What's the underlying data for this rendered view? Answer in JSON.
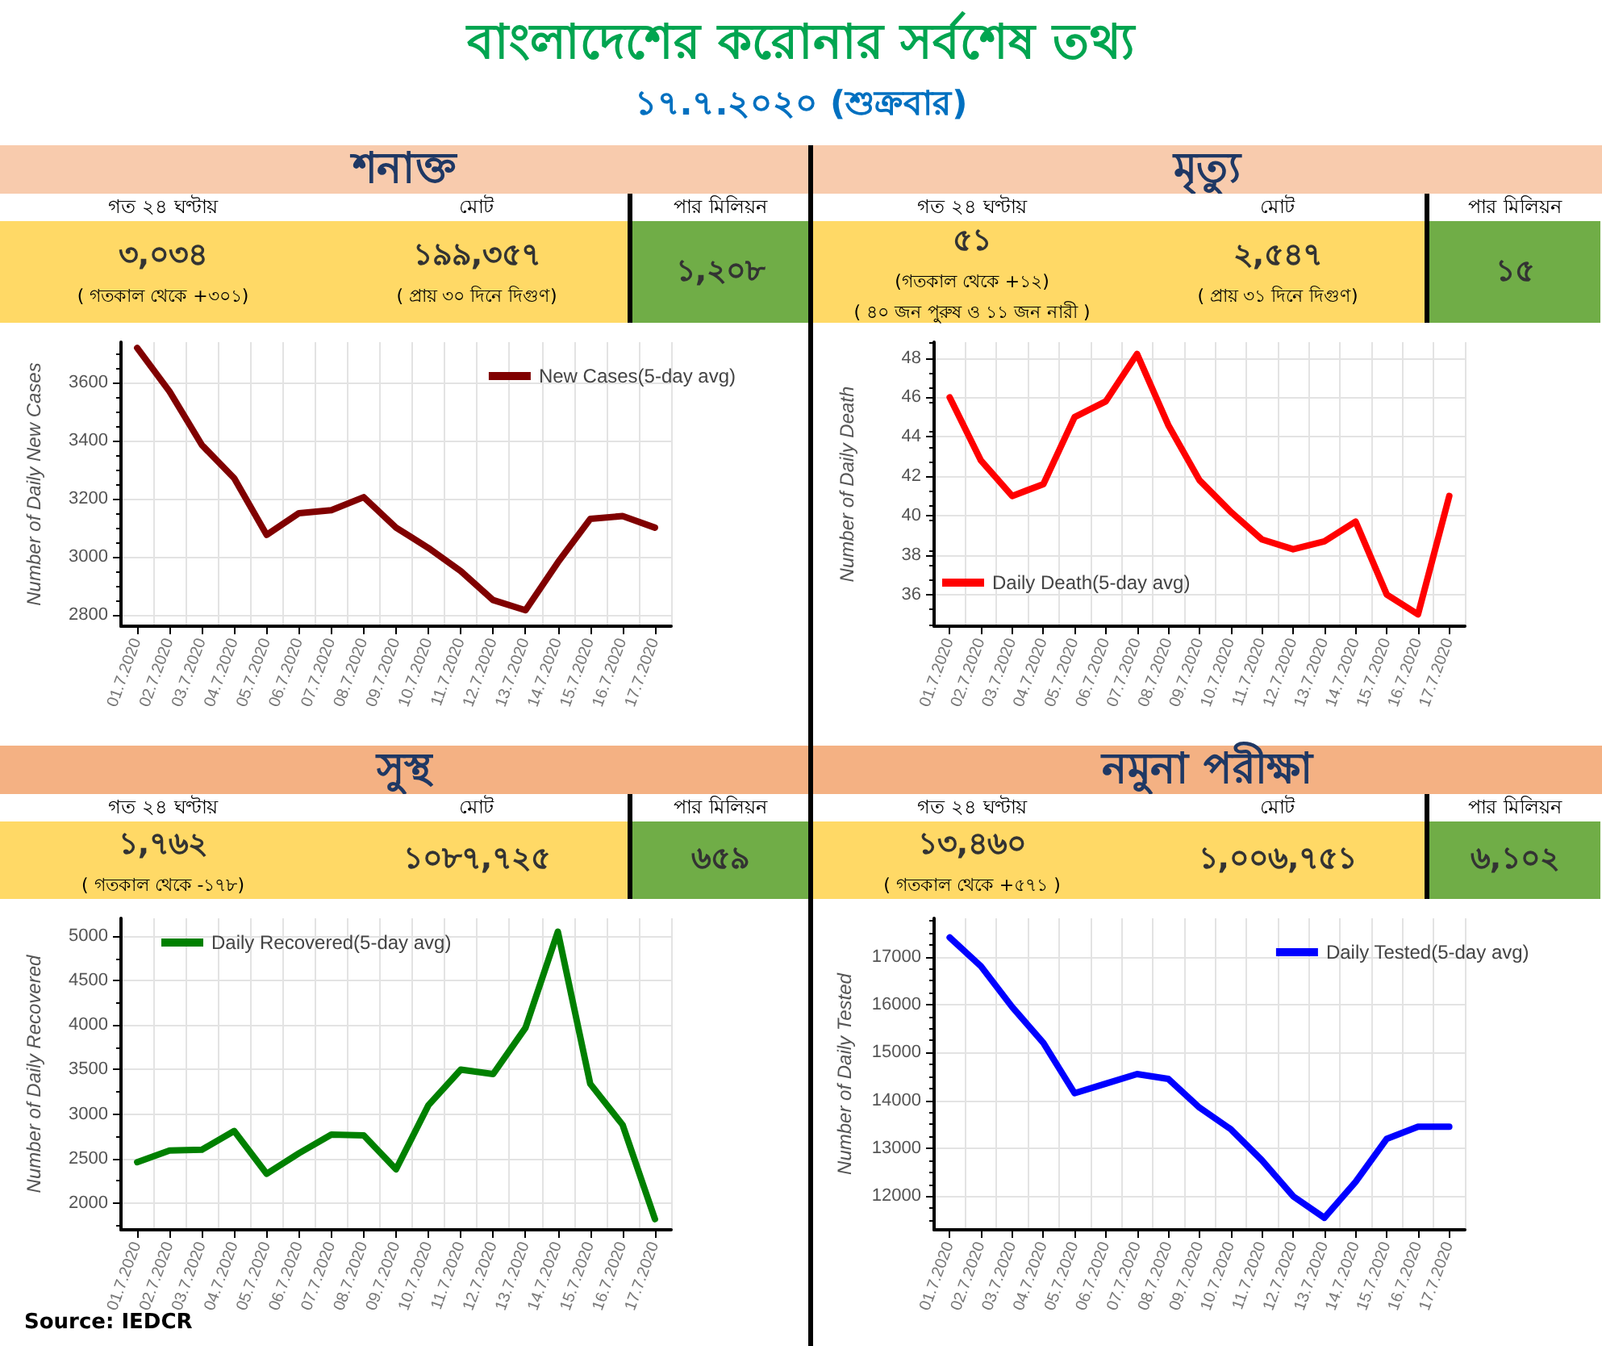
{
  "chart_data": [
    {
      "type": "other",
      "title": "বাংলাদেশের করোনার সর্বশেষ তথ্য",
      "subtitle": "১৭.৭.২০২০ (শুক্রবার)"
    },
    {
      "type": "other",
      "title": "শনাক্ত",
      "categories": [
        "গত ২৪ ঘণ্টায়",
        "মোট",
        "পার মিলিয়ন"
      ],
      "annotations": [
        {
          "text": "৩,০৩৪",
          "x": "গত ২৪ ঘণ্টায়"
        },
        {
          "text": "( গতকাল থেকে +৩০১)",
          "x": "গত ২৪ ঘণ্টায়"
        },
        {
          "text": "১৯৯,৩৫৭",
          "x": "মোট"
        },
        {
          "text": "( প্রায় ৩০ দিনে দিগুণ)",
          "x": "মোট"
        },
        {
          "text": "১,২০৮",
          "x": "পার মিলিয়ন"
        }
      ]
    },
    {
      "type": "other",
      "title": "মৃত্যু",
      "categories": [
        "গত ২৪ ঘণ্টায়",
        "মোট",
        "পার মিলিয়ন"
      ],
      "annotations": [
        {
          "text": "৫১",
          "x": "গত ২৪ ঘণ্টায়"
        },
        {
          "text": "(গতকাল থেকে +১২)",
          "x": "গত ২৪ ঘণ্টায়"
        },
        {
          "text": "( ৪০ জন পুরুষ ও ১১ জন নারী )",
          "x": "গত ২৪ ঘণ্টায়"
        },
        {
          "text": "২,৫৪৭",
          "x": "মোট"
        },
        {
          "text": "( প্রায় ৩১ দিনে দিগুণ)",
          "x": "মোট"
        },
        {
          "text": "১৫",
          "x": "পার মিলিয়ন"
        }
      ]
    },
    {
      "type": "line",
      "ylabel": "Number of Daily New Cases",
      "categories": [
        "01.7.2020",
        "02.7.2020",
        "03.7.2020",
        "04.7.2020",
        "05.7.2020",
        "06.7.2020",
        "07.7.2020",
        "08.7.2020",
        "09.7.2020",
        "10.7.2020",
        "11.7.2020",
        "12.7.2020",
        "13.7.2020",
        "14.7.2020",
        "15.7.2020",
        "16.7.2020",
        "17.7.2020"
      ],
      "series": [
        {
          "name": "New Cases(5-day avg)",
          "color": "#800000",
          "values": [
            3720,
            3570,
            3385,
            3270,
            3075,
            3150,
            3160,
            3205,
            3100,
            3030,
            2950,
            2850,
            2815,
            2980,
            3130,
            3140,
            3100
          ]
        }
      ],
      "ylim": [
        2760,
        3740
      ],
      "yticks": [
        2800,
        3000,
        3200,
        3400,
        3600
      ],
      "grid": true,
      "legend": "top right",
      "marker": "none",
      "line_style": "solid"
    },
    {
      "type": "line",
      "ylabel": "Number of Daily Death",
      "categories": [
        "01.7.2020",
        "02.7.2020",
        "03.7.2020",
        "04.7.2020",
        "05.7.2020",
        "06.7.2020",
        "07.7.2020",
        "08.7.2020",
        "09.7.2020",
        "10.7.2020",
        "11.7.2020",
        "12.7.2020",
        "13.7.2020",
        "14.7.2020",
        "15.7.2020",
        "16.7.2020",
        "17.7.2020"
      ],
      "series": [
        {
          "name": "Daily Death(5-day avg)",
          "color": "#ff0000",
          "values": [
            46,
            42.8,
            41,
            41.6,
            45,
            45.8,
            48.2,
            44.6,
            41.8,
            40.2,
            38.8,
            38.3,
            38.7,
            39.7,
            36,
            35,
            41
          ]
        }
      ],
      "ylim": [
        34.4,
        48.8
      ],
      "yticks": [
        36,
        38,
        40,
        42,
        44,
        46,
        48
      ],
      "grid": true,
      "legend": "bottom left",
      "marker": "none",
      "line_style": "solid"
    },
    {
      "type": "other",
      "title": "সুস্থ",
      "categories": [
        "গত ২৪ ঘণ্টায়",
        "মোট",
        "পার মিলিয়ন"
      ],
      "annotations": [
        {
          "text": "১,৭৬২",
          "x": "গত ২৪ ঘণ্টায়"
        },
        {
          "text": "( গতকাল থেকে -১৭৮)",
          "x": "গত ২৪ ঘণ্টায়"
        },
        {
          "text": "১০৮৭,৭২৫",
          "x": "মোট"
        },
        {
          "text": "৬৫৯",
          "x": "পার মিলিয়ন"
        }
      ]
    },
    {
      "type": "other",
      "title": "নমুনা পরীক্ষা",
      "categories": [
        "গত ২৪ ঘণ্টায়",
        "মোট",
        "পার মিলিয়ন"
      ],
      "annotations": [
        {
          "text": "১৩,৪৬০",
          "x": "গত ২৪ ঘণ্টায়"
        },
        {
          "text": "( গতকাল থেকে +৫৭১ )",
          "x": "গত ২৪ ঘণ্টায়"
        },
        {
          "text": "১,০০৬,৭৫১",
          "x": "মোট"
        },
        {
          "text": "৬,১০২",
          "x": "পার মিলিয়ন"
        }
      ]
    },
    {
      "type": "line",
      "ylabel": "Number of Daily Recovered",
      "categories": [
        "01.7.2020",
        "02.7.2020",
        "03.7.2020",
        "04.7.2020",
        "05.7.2020",
        "06.7.2020",
        "07.7.2020",
        "08.7.2020",
        "09.7.2020",
        "10.7.2020",
        "11.7.2020",
        "12.7.2020",
        "13.7.2020",
        "14.7.2020",
        "15.7.2020",
        "16.7.2020",
        "17.7.2020"
      ],
      "series": [
        {
          "name": "Daily Recovered(5-day avg)",
          "color": "#008000",
          "values": [
            2460,
            2590,
            2600,
            2810,
            2330,
            2560,
            2770,
            2760,
            2380,
            3100,
            3500,
            3450,
            3970,
            5050,
            3340,
            2880,
            1820
          ]
        }
      ],
      "ylim": [
        1700,
        5200
      ],
      "yticks": [
        2000,
        2500,
        3000,
        3500,
        4000,
        4500,
        5000
      ],
      "grid": true,
      "legend": "top left",
      "marker": "none",
      "line_style": "solid"
    },
    {
      "type": "line",
      "ylabel": "Number of Daily Tested",
      "categories": [
        "01.7.2020",
        "02.7.2020",
        "03.7.2020",
        "04.7.2020",
        "05.7.2020",
        "06.7.2020",
        "07.7.2020",
        "08.7.2020",
        "09.7.2020",
        "10.7.2020",
        "11.7.2020",
        "12.7.2020",
        "13.7.2020",
        "14.7.2020",
        "15.7.2020",
        "16.7.2020",
        "17.7.2020"
      ],
      "series": [
        {
          "name": "Daily Tested(5-day avg)",
          "color": "#0000ff",
          "values": [
            17400,
            16800,
            15950,
            15200,
            14150,
            14350,
            14550,
            14450,
            13850,
            13400,
            12750,
            12000,
            11550,
            12300,
            13200,
            13450,
            13450
          ]
        }
      ],
      "ylim": [
        11300,
        17800
      ],
      "yticks": [
        12000,
        13000,
        14000,
        15000,
        16000,
        17000
      ],
      "grid": true,
      "legend": "top right",
      "marker": "none",
      "line_style": "solid",
      "annotations": [
        "Source: IEDCR"
      ]
    }
  ]
}
